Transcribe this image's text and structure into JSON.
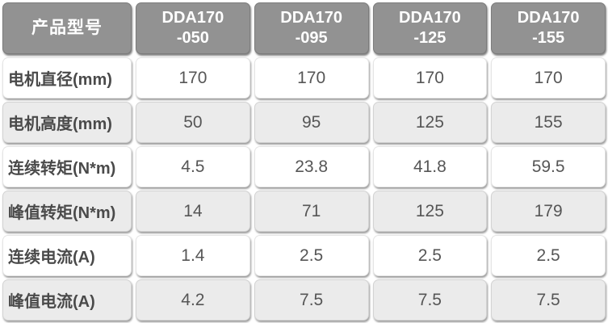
{
  "chart_data": {
    "type": "table",
    "corner_header": "产品型号",
    "columns": [
      {
        "line1": "DDA170",
        "line2": "-050"
      },
      {
        "line1": "DDA170",
        "line2": "-095"
      },
      {
        "line1": "DDA170",
        "line2": "-125"
      },
      {
        "line1": "DDA170",
        "line2": "-155"
      }
    ],
    "rows": [
      {
        "label": "电机直径(mm)",
        "values": [
          "170",
          "170",
          "170",
          "170"
        ]
      },
      {
        "label": "电机高度(mm)",
        "values": [
          "50",
          "95",
          "125",
          "155"
        ]
      },
      {
        "label": "连续转矩(N*m)",
        "values": [
          "4.5",
          "23.8",
          "41.8",
          "59.5"
        ]
      },
      {
        "label": "峰值转矩(N*m)",
        "values": [
          "14",
          "71",
          "125",
          "179"
        ]
      },
      {
        "label": "连续电流(A)",
        "values": [
          "1.4",
          "2.5",
          "2.5",
          "2.5"
        ]
      },
      {
        "label": "峰值电流(A)",
        "values": [
          "4.2",
          "7.5",
          "7.5",
          "7.5"
        ]
      }
    ],
    "layout": {
      "alternating_rows": true,
      "header_position": "top"
    }
  },
  "colors": {
    "header_bg": "#929292",
    "header_text": "#ffffff",
    "row_bg": "#ffffff",
    "row_alt_bg": "#ebebeb",
    "label_text": "#4a4a4a",
    "value_text": "#565656",
    "page_bg": "#ffffff"
  }
}
